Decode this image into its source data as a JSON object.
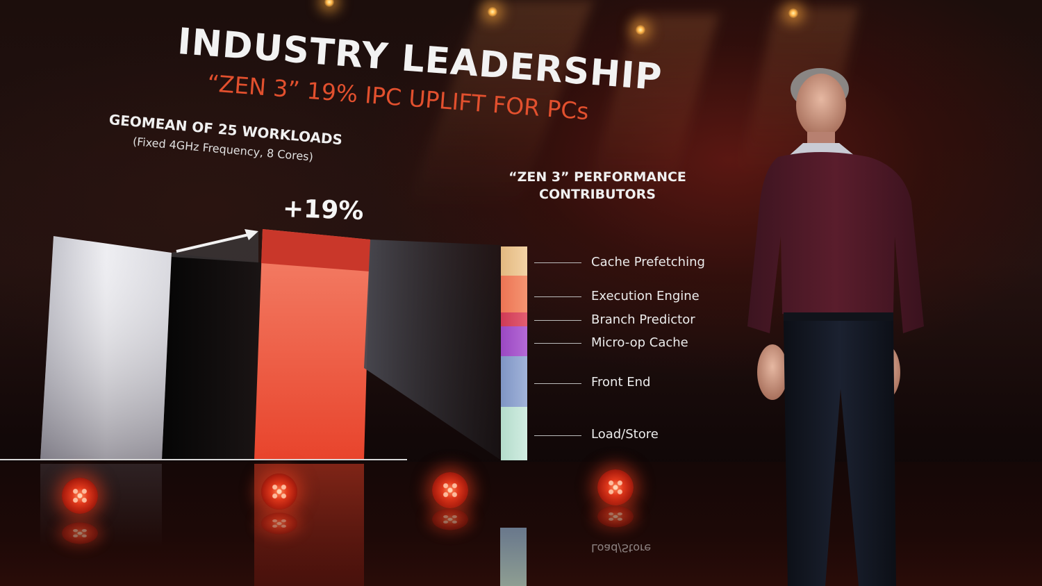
{
  "slide": {
    "title": "INDUSTRY LEADERSHIP",
    "subtitle": "“ZEN 3” 19% IPC UPLIFT FOR PCs",
    "chart_label": "GEOMEAN OF 25 WORKLOADS",
    "chart_note": "(Fixed 4GHz Frequency, 8 Cores)",
    "uplift_label": "+19%",
    "contributors_title_line1": "“ZEN 3” PERFORMANCE",
    "contributors_title_line2": "CONTRIBUTORS",
    "contributors": [
      {
        "label": "Cache Prefetching",
        "color": "#ecc594"
      },
      {
        "label": "Execution Engine",
        "color": "#f08560"
      },
      {
        "label": "Branch Predictor",
        "color": "#d8475e"
      },
      {
        "label": "Micro-op Cache",
        "color": "#a454c8"
      },
      {
        "label": "Front End",
        "color": "#8ea2cc"
      },
      {
        "label": "Load/Store",
        "color": "#c2e4d6"
      }
    ],
    "reflection_text": "Load/Store"
  },
  "chart_data": {
    "type": "bar",
    "categories": [
      "",
      ""
    ],
    "values": [
      1.0,
      1.19
    ],
    "annotations": [
      "+19%"
    ],
    "stacked_contributors": [
      "Cache Prefetching",
      "Execution Engine",
      "Branch Predictor",
      "Micro-op Cache",
      "Front End",
      "Load/Store"
    ]
  },
  "colors": {
    "bar_baseline": "#e6e6ea",
    "bar_zen3": "#f0634a",
    "bar_zen3_top": "#c9372a",
    "accent": "#e2502e"
  }
}
